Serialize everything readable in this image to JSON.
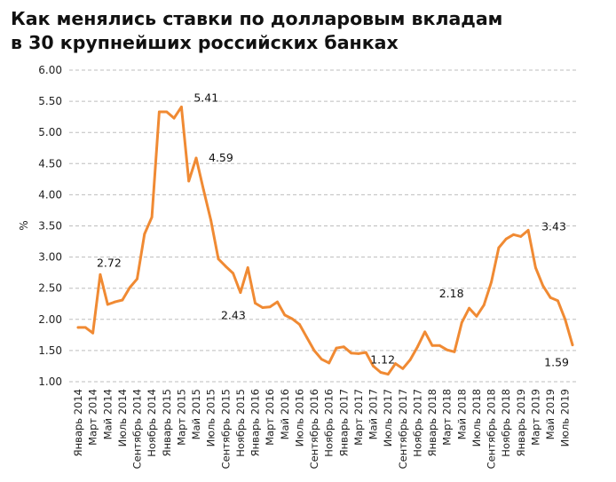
{
  "title_lines": [
    "Как менялись ставки по долларовым вкладам",
    "в 30 крупнейших российских банках"
  ],
  "chart_data": {
    "type": "line",
    "title": "Как менялись ставки по долларовым вкладам в 30 крупнейших российских банках",
    "ylabel": "%",
    "xlabel": "",
    "ylim": [
      1.0,
      6.0
    ],
    "y_ticks": [
      "1.00",
      "1.50",
      "2.00",
      "2.50",
      "3.00",
      "3.50",
      "4.00",
      "4.50",
      "5.00",
      "5.50",
      "6.00"
    ],
    "grid": "horizontal dashed",
    "line_color": "#F08A33",
    "x_tick_labels": [
      "Январь 2014",
      "Март 2014",
      "Май 2014",
      "Июль 2014",
      "Сентябрь 2014",
      "Ноябрь 2014",
      "Январь 2015",
      "Март 2015",
      "Май 2015",
      "Июль 2015",
      "Сентябрь 2015",
      "Ноябрь 2015",
      "Январь 2016",
      "Март 2016",
      "Май 2016",
      "Июль 2016",
      "Сентябрь 2016",
      "Ноябрь 2016",
      "Январь 2017",
      "Март 2017",
      "Май 2017",
      "Июль 2017",
      "Сентябрь 2017",
      "Ноябрь 2017",
      "Январь 2018",
      "Март 2018",
      "Май 2018",
      "Июль 2018",
      "Сентябрь 2018",
      "Ноябрь 2018",
      "Январь 2019",
      "Март 2019",
      "Май 2019",
      "Июль 2019"
    ],
    "series": [
      {
        "values": [
          1.87,
          1.87,
          1.78,
          2.72,
          2.24,
          2.28,
          2.31,
          2.51,
          2.65,
          3.37,
          3.64,
          5.33,
          5.33,
          5.23,
          5.41,
          4.22,
          4.59,
          4.08,
          3.59,
          2.97,
          2.85,
          2.74,
          2.43,
          2.83,
          2.26,
          2.19,
          2.2,
          2.28,
          2.07,
          2.01,
          1.92,
          1.71,
          1.5,
          1.36,
          1.3,
          1.54,
          1.56,
          1.46,
          1.45,
          1.47,
          1.25,
          1.15,
          1.12,
          1.29,
          1.21,
          1.35,
          1.56,
          1.8,
          1.58,
          1.58,
          1.51,
          1.48,
          1.95,
          2.18,
          2.05,
          2.23,
          2.6,
          3.15,
          3.29,
          3.36,
          3.33,
          3.43,
          2.83,
          2.54,
          2.35,
          2.3,
          2.0,
          1.59
        ]
      }
    ],
    "data_labels": [
      {
        "index": 3,
        "text": "2.72"
      },
      {
        "index": 14,
        "text": "5.41"
      },
      {
        "index": 16,
        "text": "4.59"
      },
      {
        "index": 22,
        "text": "2.43"
      },
      {
        "index": 42,
        "text": "1.12"
      },
      {
        "index": 53,
        "text": "2.18"
      },
      {
        "index": 61,
        "text": "3.43"
      },
      {
        "index": 67,
        "text": "1.59"
      }
    ]
  }
}
